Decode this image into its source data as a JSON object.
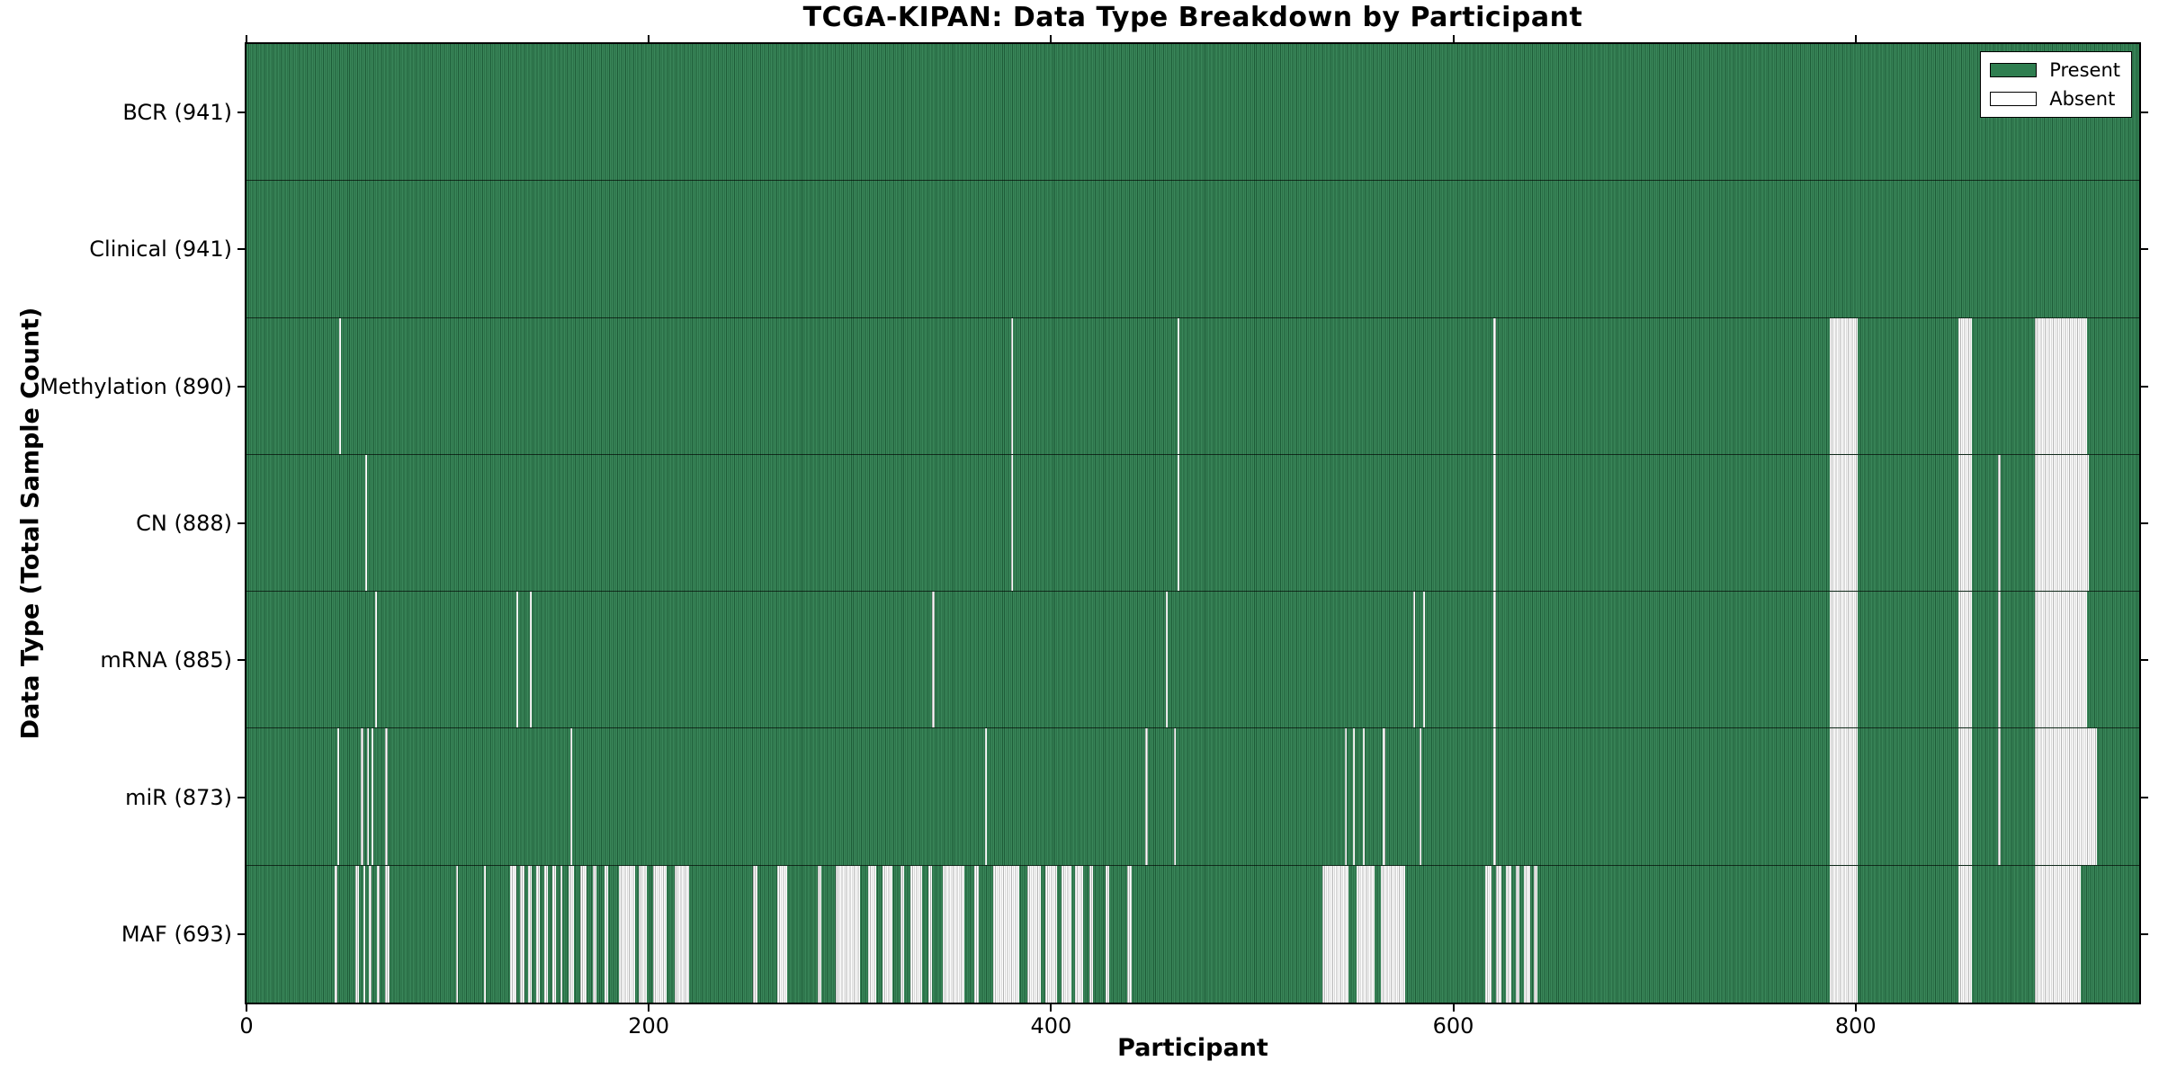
{
  "colors": {
    "present_fill": "#3a875a",
    "present_edge": "#1e5c38",
    "absent_fill": "#ffffff",
    "absent_edge": "#b4b4b4",
    "legend_present_swatch": "#2f7e50",
    "legend_absent_swatch": "#ffffff",
    "axis_border": "#000000"
  },
  "chart_data": {
    "type": "heatmap",
    "title": "TCGA-KIPAN: Data Type Breakdown by Participant",
    "xlabel": "Participant",
    "ylabel": "Data Type (Total Sample Count)",
    "x_range": [
      0,
      941
    ],
    "x_ticks": [
      0,
      200,
      400,
      600,
      800
    ],
    "grid": false,
    "legend_position": "upper right",
    "legend": [
      "Present",
      "Absent"
    ],
    "rows": [
      {
        "label": "BCR (941)",
        "data_type": "BCR",
        "present_count": 941,
        "absent_ranges": []
      },
      {
        "label": "Clinical (941)",
        "data_type": "Clinical",
        "present_count": 941,
        "absent_ranges": []
      },
      {
        "label": "Methylation (890)",
        "data_type": "Methylation",
        "present_count": 890,
        "absent_ranges": [
          [
            46,
            47
          ],
          [
            380,
            381
          ],
          [
            463,
            464
          ],
          [
            620,
            621
          ],
          [
            787,
            801
          ],
          [
            851,
            858
          ],
          [
            889,
            915
          ]
        ]
      },
      {
        "label": "CN (888)",
        "data_type": "CN",
        "present_count": 888,
        "absent_ranges": [
          [
            59,
            60
          ],
          [
            380,
            381
          ],
          [
            463,
            464
          ],
          [
            620,
            621
          ],
          [
            787,
            801
          ],
          [
            851,
            858
          ],
          [
            871,
            872
          ],
          [
            889,
            916
          ]
        ]
      },
      {
        "label": "mRNA (885)",
        "data_type": "mRNA",
        "present_count": 885,
        "absent_ranges": [
          [
            64,
            65
          ],
          [
            134,
            135
          ],
          [
            141,
            142
          ],
          [
            341,
            342
          ],
          [
            457,
            458
          ],
          [
            580,
            581
          ],
          [
            585,
            586
          ],
          [
            620,
            621
          ],
          [
            787,
            801
          ],
          [
            851,
            858
          ],
          [
            871,
            872
          ],
          [
            889,
            915
          ]
        ]
      },
      {
        "label": "miR (873)",
        "data_type": "miR",
        "present_count": 873,
        "absent_ranges": [
          [
            45,
            46
          ],
          [
            57,
            58
          ],
          [
            60,
            61
          ],
          [
            62,
            63
          ],
          [
            69,
            70
          ],
          [
            161,
            162
          ],
          [
            367,
            368
          ],
          [
            447,
            448
          ],
          [
            461,
            462
          ],
          [
            546,
            547
          ],
          [
            550,
            551
          ],
          [
            555,
            556
          ],
          [
            565,
            566
          ],
          [
            583,
            584
          ],
          [
            620,
            621
          ],
          [
            787,
            801
          ],
          [
            851,
            858
          ],
          [
            871,
            872
          ],
          [
            889,
            920
          ]
        ]
      },
      {
        "label": "MAF (693)",
        "data_type": "MAF",
        "present_count": 693,
        "absent_ranges": [
          [
            44,
            45
          ],
          [
            54,
            56
          ],
          [
            58,
            59
          ],
          [
            61,
            62
          ],
          [
            65,
            66
          ],
          [
            69,
            71
          ],
          [
            104,
            105
          ],
          [
            118,
            119
          ],
          [
            131,
            134
          ],
          [
            136,
            138
          ],
          [
            140,
            142
          ],
          [
            144,
            146
          ],
          [
            148,
            150
          ],
          [
            152,
            154
          ],
          [
            156,
            157
          ],
          [
            160,
            163
          ],
          [
            166,
            169
          ],
          [
            172,
            174
          ],
          [
            178,
            180
          ],
          [
            185,
            193
          ],
          [
            195,
            199
          ],
          [
            202,
            209
          ],
          [
            213,
            220
          ],
          [
            252,
            254
          ],
          [
            264,
            269
          ],
          [
            284,
            286
          ],
          [
            293,
            305
          ],
          [
            309,
            313
          ],
          [
            316,
            321
          ],
          [
            325,
            327
          ],
          [
            330,
            336
          ],
          [
            339,
            341
          ],
          [
            346,
            357
          ],
          [
            362,
            364
          ],
          [
            371,
            384
          ],
          [
            388,
            395
          ],
          [
            397,
            403
          ],
          [
            405,
            410
          ],
          [
            412,
            416
          ],
          [
            419,
            421
          ],
          [
            427,
            429
          ],
          [
            438,
            440
          ],
          [
            535,
            548
          ],
          [
            552,
            561
          ],
          [
            564,
            576
          ],
          [
            616,
            619
          ],
          [
            621,
            624
          ],
          [
            626,
            629
          ],
          [
            631,
            633
          ],
          [
            635,
            638
          ],
          [
            640,
            642
          ],
          [
            787,
            801
          ],
          [
            851,
            858
          ],
          [
            889,
            912
          ]
        ]
      }
    ]
  }
}
